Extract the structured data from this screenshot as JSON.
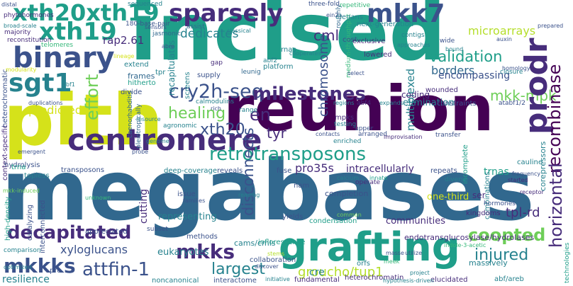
{
  "words": {
    "megabases": "megabases",
    "incised": "incised",
    "reunion": "reunion",
    "pith": "pith",
    "grafting": "grafting",
    "centromere": "centromere",
    "binary": "binary",
    "sparsely": "sparsely",
    "mkk7": "mkk7",
    "xth20xth19": "xth20xth19",
    "xth19": "xth19",
    "sgt1": "sgt1",
    "cry2h_seq": "cry2h-seq",
    "milestones": "milestones",
    "retrotransposons": "retrotransposons",
    "prodr": "prodr",
    "recombinase": "recombinase",
    "horizontal": "horizontal",
    "decapitated": "decapitated",
    "mkks": "mkks",
    "mkkks": "mkkks",
    "attfin_1": "attfin-1",
    "coopted": "coopted",
    "injured": "injured",
    "largest": "largest",
    "groucho_tup1": "groucho/tup1",
    "xth20": "xth20",
    "en": "en",
    "effort": "effort",
    "healing": "healing",
    "tyr": "tyr",
    "disconnects": "disconnects",
    "validation": "validation",
    "cml": "cml",
    "mkk_mpk": "mkk-mpk",
    "chromosome": "chromosome",
    "microarrays": "microarrays",
    "dedicates": "dedicates",
    "rap2_61": "rap2.61",
    "predicted": "predicted",
    "multiplexed": "multiplexed",
    "borders": "borders",
    "encompassing": "encompassing",
    "pro35s": "pro35s",
    "intracellularly": "intracellularly",
    "trnas": "trnas",
    "tpl_rd": "tpl-rd",
    "xyloglucans": "xyloglucans",
    "resilience": "resilience",
    "cutting": "cutting",
    "eukaryotes": "eukaryotes",
    "endotransglucosylase": "endotransglucosylase/hydrolases",
    "cre": "cre",
    "cams_cmls": "cams/cmls",
    "communities": "communities",
    "phytohormones": "phytohormones",
    "distal": "distal",
    "broad_scale": "broad-scale",
    "majority": "majority",
    "reconstitution": "reconstitution",
    "telomeres": "telomeres",
    "heterochromatic": "heterochromatic",
    "frames": "frames",
    "hitherto": "hitherto",
    "divide": "divide",
    "extend": "extend",
    "recapitulates": "recapitulates",
    "screens": "screens",
    "tpr": "tpr",
    "supply": "supply",
    "gap": "gap",
    "jasmonic": "jasmonic",
    "assist": "assist",
    "sequenced": "sequenced",
    "base_pair": "180-base-pair",
    "leunig": "leunig",
    "abf2": "abf2",
    "rnas": "rnas",
    "platform": "platform",
    "cost": "cost",
    "three_fold": "three-fold",
    "repetitive": "repetitive",
    "elegans": "elegans",
    "next_generation": "next-generation",
    "contigs": "contigs",
    "roughly": "roughly",
    "medium_throughput": "medium-throughput",
    "lowered": "lowered",
    "coding": "coding",
    "wounded": "wounded",
    "elimination": "elimination",
    "abf4": "abf4",
    "constraints": "constraints",
    "atabf1_2": "atabf1/2",
    "mpks": "mpks",
    "testing": "testing",
    "upper": "upper",
    "arranged": "arranged",
    "enriched": "enriched",
    "transfer": "transfer",
    "combinations": "combinations",
    "corepressors": "corepressors",
    "incomplete": "incomplete",
    "cauline": "cauline",
    "repeats": "repeats",
    "fuse": "fuse",
    "calcium": "calcium",
    "innate": "innate",
    "operate": "operate",
    "diverse": "diverse",
    "started": "started",
    "frequency": "frequency",
    "receptor": "receptor",
    "one_third": "one-third",
    "ser": "ser",
    "hormones": "hormones",
    "kingdoms": "kingdoms",
    "completion": "completion",
    "nam": "nam",
    "condensation": "condensation",
    "yields": "yields",
    "representing": "representing",
    "issue": "issue",
    "families": "families",
    "appreciated": "appreciated",
    "subset": "subset",
    "methods": "methods",
    "inflorescence": "inflorescence",
    "collaboration": "collaboration",
    "discover": "discover",
    "fundamental": "fundamental",
    "heterochromatin": "heterochromatin",
    "noncanonical": "noncanonical",
    "interactome": "interactome",
    "initiative": "initiative",
    "orfs": "orfs",
    "stems": "stems",
    "masse": "masse",
    "utilize": "utilize",
    "project": "project",
    "elucidated": "elucidated",
    "massively": "massively",
    "technologies": "technologies",
    "abf_areb": "abf/areb",
    "hypothesis_driven": "hypothesis-driven",
    "indole_acetic": "indole-3-acetic",
    "meek": "meek",
    "transposons": "transposons",
    "deep_coverage": "deep-coverage",
    "reveals": "reveals",
    "catalyzing": "catalyzing",
    "high_density": "high-density",
    "interconnected": "interconnected",
    "comparison": "comparison",
    "hydrolysis": "hydrolysis",
    "optimized": "optimized",
    "pro": "pro",
    "topless": "topless",
    "trna": "trna",
    "emergent": "emergent",
    "context_specific": "context-specific",
    "mkk_induced": "mkk-induced",
    "probe": "probe",
    "genome": "genome",
    "pleiotropically": "pleiotropically",
    "caenorhabditis": "caenorhabditis",
    "resource": "resource",
    "agronomic": "agronomic",
    "calmodulins": "calmodulins",
    "rich": "rich",
    "range": "range",
    "regions": "regions",
    "expands": "expands",
    "contacts": "contacts",
    "improvisation": "improvisation",
    "closure": "closure",
    "homology": "homology",
    "bound": "bound",
    "wide": "wide",
    "exclusive": "exclusive",
    "approaches": "approaches",
    "cooperates": "cooperates",
    "select": "select",
    "auxin": "auxin",
    "prepared": "prepared",
    "classical": "classical",
    "sensors": "sensors",
    "ein2": "ein2",
    "duplications": "duplications",
    "abf1": "abf1",
    "lineage": "lineage",
    "modularity": "modularity",
    "abre": "abre",
    "unknown": "unknown",
    "reading": "reading",
    "common": "common"
  }
}
